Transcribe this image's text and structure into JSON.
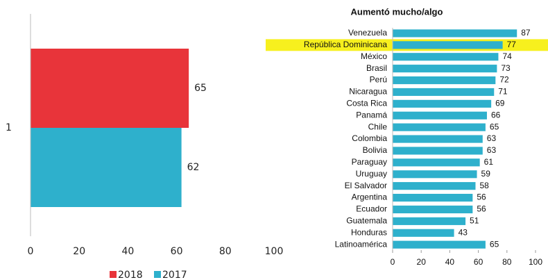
{
  "chart_data": [
    {
      "type": "hbar",
      "categories": [
        "1"
      ],
      "series": [
        {
          "name": "2018",
          "color": "#e8343a",
          "values": [
            65
          ]
        },
        {
          "name": "2017",
          "color": "#2eb0cc",
          "values": [
            62
          ]
        }
      ],
      "xlim": [
        0,
        100
      ],
      "xticks": [
        0,
        20,
        40,
        60,
        80,
        100
      ],
      "legend": "bottom"
    },
    {
      "type": "hbar",
      "title": "Aumentó mucho/algo",
      "categories": [
        "Venezuela",
        "República Dominicana",
        "México",
        "Brasil",
        "Perú",
        "Nicaragua",
        "Costa Rica",
        "Panamá",
        "Chile",
        "Colombia",
        "Bolivia",
        "Paraguay",
        "Uruguay",
        "El Salvador",
        "Argentina",
        "Ecuador",
        "Guatemala",
        "Honduras",
        "Latinoamérica"
      ],
      "values": [
        87,
        77,
        74,
        73,
        72,
        71,
        69,
        66,
        65,
        63,
        63,
        61,
        59,
        58,
        56,
        56,
        51,
        43,
        65
      ],
      "color": "#2eb0cc",
      "highlight": 1,
      "highlight_color": "#f7f01e",
      "xlim": [
        0,
        100
      ],
      "xticks": [
        0,
        20,
        40,
        60,
        80,
        100
      ]
    }
  ]
}
